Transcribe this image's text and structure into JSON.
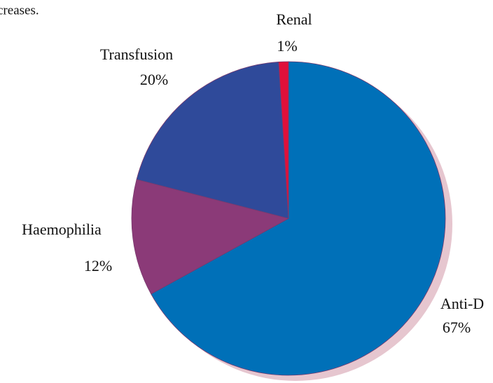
{
  "chart_data": {
    "type": "pie",
    "subtitle": "creases.",
    "categories": [
      "Anti-D",
      "Haemophilia",
      "Transfusion",
      "Renal"
    ],
    "values": [
      67,
      12,
      20,
      1
    ],
    "value_labels": [
      "67%",
      "12%",
      "20%",
      "1%"
    ],
    "colors": [
      "#0070b8",
      "#8b3a78",
      "#2f4a9a",
      "#e0103a"
    ]
  }
}
